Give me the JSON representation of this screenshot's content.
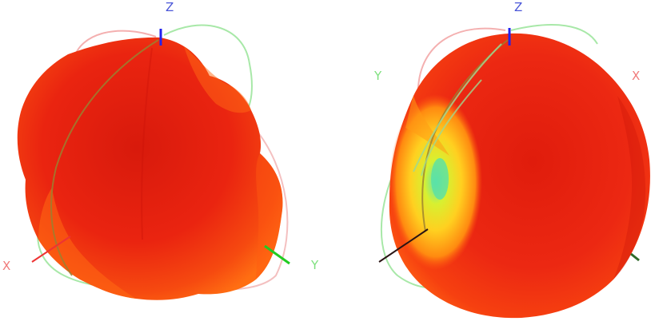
{
  "views": [
    {
      "axes": {
        "z": "Z",
        "x": "X",
        "y": "Y"
      }
    },
    {
      "axes": {
        "z": "Z",
        "x": "X",
        "y": "Y"
      }
    }
  ],
  "colors": {
    "axis_z": "#2222ee",
    "axis_x": "#ee3333",
    "axis_y": "#22cc22",
    "label_z": "#4a56d8",
    "label_x": "#f07a7a",
    "label_y": "#7ee07e",
    "surface_high": "#e81e0e",
    "surface_mid": "#ff6a00",
    "surface_low": "#f4f020",
    "surface_min": "#4ae0a0",
    "cut_red": "#f4a8a8",
    "cut_green": "#a8e8a8"
  }
}
